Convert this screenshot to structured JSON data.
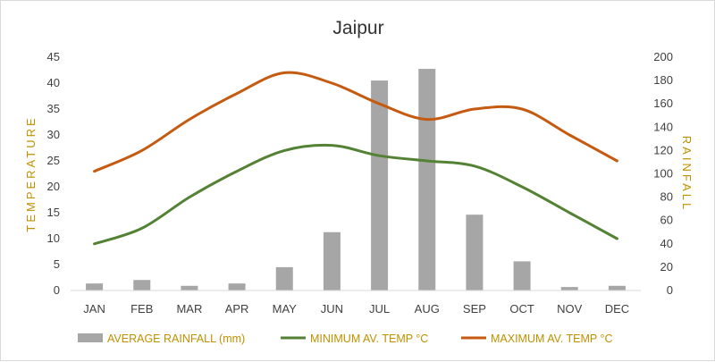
{
  "chart_data": {
    "type": "bar",
    "title": "Jaipur",
    "categories": [
      "JAN",
      "FEB",
      "MAR",
      "APR",
      "MAY",
      "JUN",
      "JUL",
      "AUG",
      "SEP",
      "OCT",
      "NOV",
      "DEC"
    ],
    "y_left": {
      "label": "TEMPERATURE",
      "ylim": [
        0,
        45
      ],
      "ticks": [
        "0",
        "5",
        "10",
        "15",
        "20",
        "25",
        "30",
        "35",
        "40",
        "45"
      ]
    },
    "y_right": {
      "label": "RAINFALL",
      "ylim": [
        0,
        200
      ],
      "ticks": [
        "0",
        "20",
        "40",
        "60",
        "80",
        "100",
        "120",
        "140",
        "160",
        "180",
        "200"
      ]
    },
    "grid": false,
    "legend_position": "bottom",
    "series": [
      {
        "name": "AVERAGE RAINFALL (mm)",
        "type": "bar",
        "axis": "right",
        "color": "#a6a6a6",
        "values": [
          6,
          9,
          4,
          6,
          20,
          50,
          180,
          190,
          65,
          25,
          3,
          4
        ]
      },
      {
        "name": "MINIMUM AV. TEMP °C",
        "type": "line",
        "axis": "left",
        "color": "#548235",
        "values": [
          9,
          12,
          18,
          23,
          27,
          28,
          26,
          25,
          24,
          20,
          15,
          10
        ]
      },
      {
        "name": "MAXIMUM AV. TEMP °C",
        "type": "line",
        "axis": "left",
        "color": "#c55a11",
        "values": [
          23,
          27,
          33,
          38,
          42,
          40,
          36,
          33,
          35,
          35,
          30,
          25
        ]
      }
    ],
    "axis_title_color": "#bf9000",
    "legend_text_color": "#bf9000"
  }
}
